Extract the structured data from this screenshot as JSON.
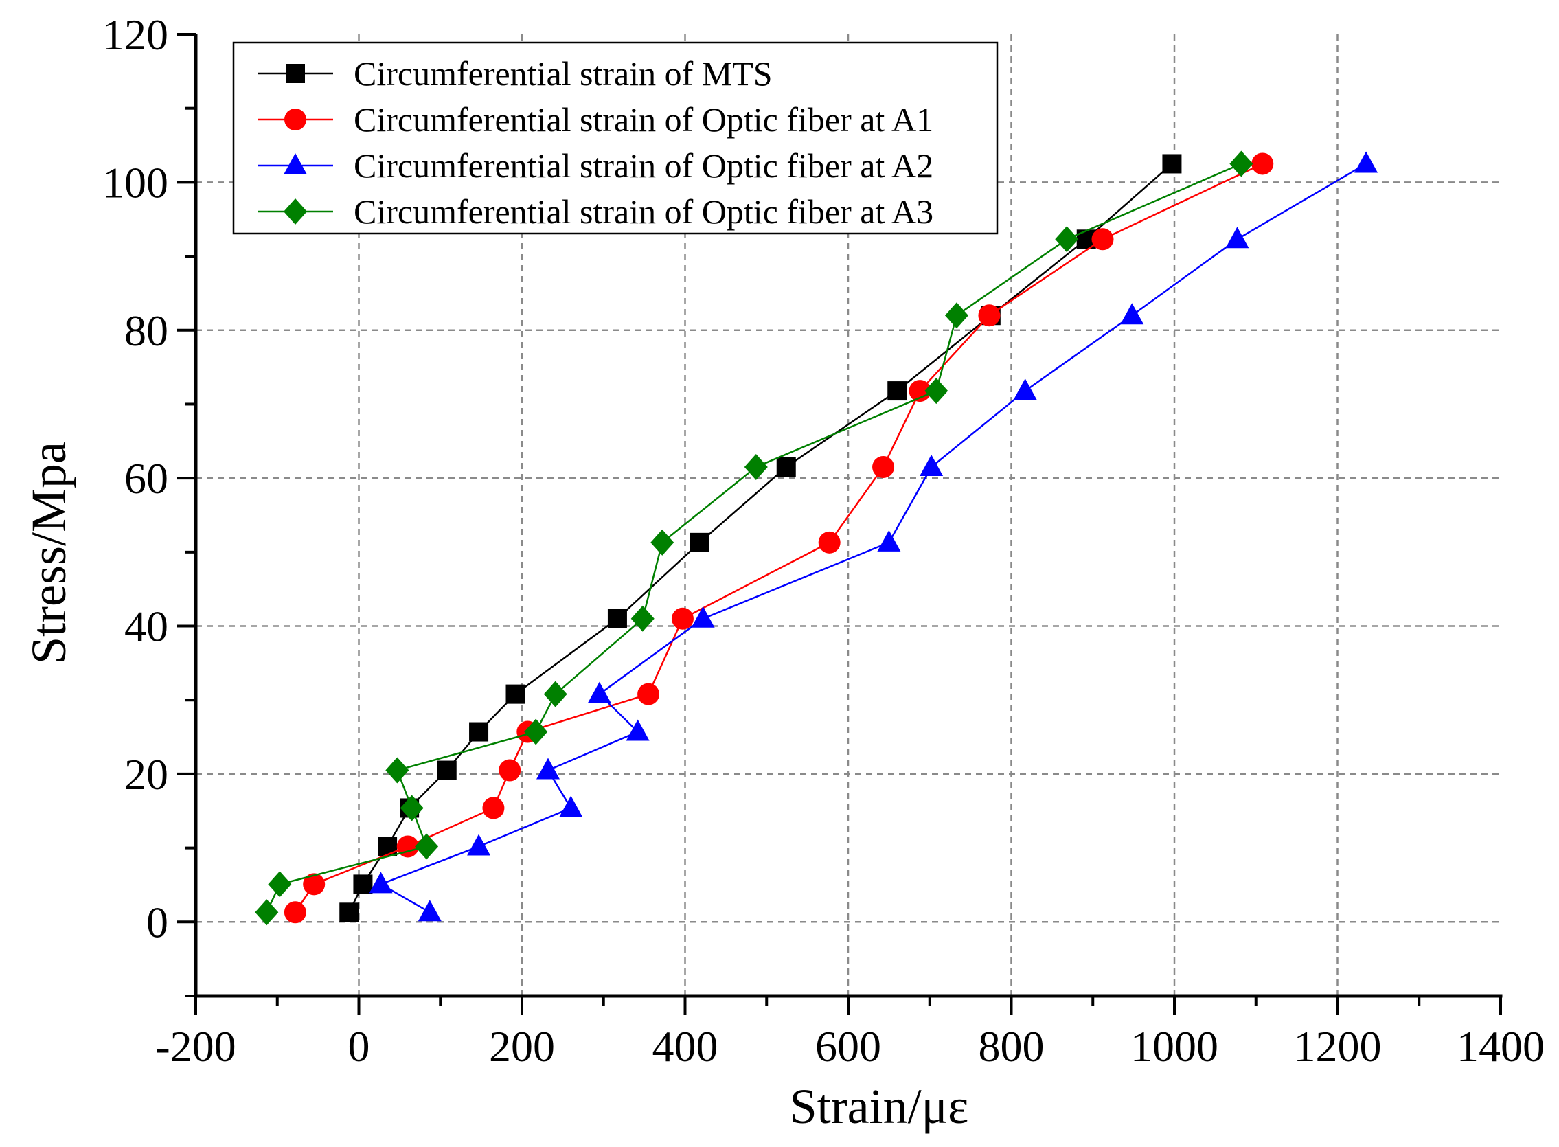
{
  "chart_data": {
    "type": "line",
    "title": "",
    "xlabel": "Strain/με",
    "ylabel": "Stress/Mpa",
    "xlim": [
      -200,
      1400
    ],
    "ylim": [
      -10,
      120
    ],
    "xticks": [
      -200,
      0,
      200,
      400,
      600,
      800,
      1000,
      1200,
      1400
    ],
    "yticks": [
      0,
      20,
      40,
      60,
      80,
      100,
      120
    ],
    "grid": true,
    "legend_position": "top-left",
    "series": [
      {
        "name": "Circumferential strain of MTS",
        "color": "#000000",
        "marker": "square",
        "x": [
          -12,
          5,
          35,
          62,
          108,
          147,
          192,
          317,
          418,
          524,
          660,
          775,
          892,
          997
        ],
        "y": [
          1.3,
          5.1,
          10.2,
          15.4,
          20.5,
          25.7,
          30.8,
          41.0,
          51.3,
          61.5,
          71.8,
          82.0,
          92.3,
          102.5
        ]
      },
      {
        "name": "Circumferential strain of Optic fiber at A1",
        "color": "#ff0000",
        "marker": "circle",
        "x": [
          -78,
          -55,
          60,
          165,
          185,
          207,
          355,
          397,
          577,
          643,
          688,
          773,
          912,
          1108
        ],
        "y": [
          1.3,
          5.1,
          10.2,
          15.4,
          20.5,
          25.7,
          30.8,
          41.0,
          51.3,
          61.5,
          71.8,
          82.0,
          92.3,
          102.5
        ]
      },
      {
        "name": "Circumferential strain of Optic fiber at A2",
        "color": "#0000ff",
        "marker": "triangle",
        "x": [
          87,
          27,
          147,
          260,
          232,
          342,
          295,
          422,
          650,
          702,
          817,
          948,
          1077,
          1235
        ],
        "y": [
          1.3,
          5.1,
          10.2,
          15.4,
          20.5,
          25.7,
          30.8,
          41.0,
          51.3,
          61.5,
          71.8,
          82.0,
          92.3,
          102.5
        ]
      },
      {
        "name": "Circumferential strain of Optic fiber at A3",
        "color": "#008000",
        "marker": "diamond",
        "x": [
          -113,
          -97,
          83,
          65,
          47,
          217,
          241,
          348,
          372,
          487,
          708,
          733,
          868,
          1082
        ],
        "y": [
          1.3,
          5.1,
          10.2,
          15.4,
          20.5,
          25.7,
          30.8,
          41.0,
          51.3,
          61.5,
          71.8,
          82.0,
          92.3,
          102.5
        ]
      }
    ]
  }
}
